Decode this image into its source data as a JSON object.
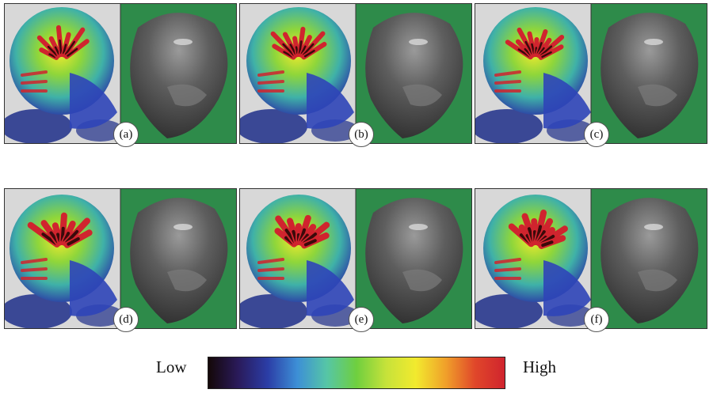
{
  "panels": [
    {
      "label": "(a)",
      "variant": 0
    },
    {
      "label": "(b)",
      "variant": 1
    },
    {
      "label": "(c)",
      "variant": 2
    },
    {
      "label": "(d)",
      "variant": 3
    },
    {
      "label": "(e)",
      "variant": 4
    },
    {
      "label": "(f)",
      "variant": 5
    }
  ],
  "legend": {
    "low": "Low",
    "high": "High",
    "colors": [
      "#140808",
      "#2a1a5a",
      "#2b3da6",
      "#3d8fd6",
      "#56c6a6",
      "#6fcf3f",
      "#c6e23a",
      "#f2ea2e",
      "#f0a12a",
      "#e0472a",
      "#d0242e"
    ]
  },
  "colors": {
    "background_green": "#2e8b4a",
    "panel_gray": "#d8d8d8",
    "dark_blue": "#1f2f8a",
    "tissue_gray": "#4a4a4a"
  }
}
